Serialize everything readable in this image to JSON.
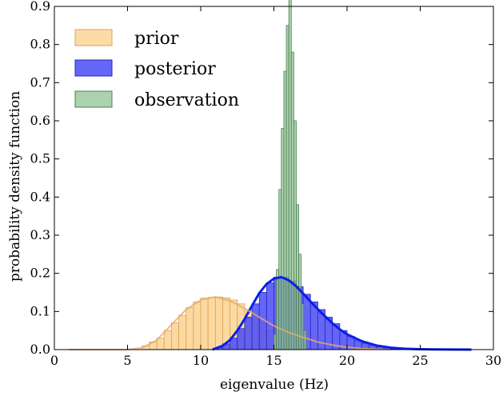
{
  "chart_data": {
    "type": "histogram",
    "xlabel": "eigenvalue (Hz)",
    "ylabel": "probability density function",
    "xlim": [
      0,
      30
    ],
    "ylim": [
      0,
      0.9
    ],
    "xticks": [
      "0",
      "5",
      "10",
      "15",
      "20",
      "25",
      "30"
    ],
    "yticks": [
      "0.0",
      "0.1",
      "0.2",
      "0.3",
      "0.4",
      "0.5",
      "0.6",
      "0.7",
      "0.8",
      "0.9"
    ],
    "legend": {
      "placement": "top-left",
      "entries": [
        "prior",
        "posterior",
        "observation"
      ]
    },
    "colors": {
      "prior_fill": "#fcd596",
      "prior_edge": "#d9a35a",
      "prior_curve": "#e8a96a",
      "posterior_fill": "#4a4af7",
      "posterior_edge": "#2a2ab8",
      "posterior_curve": "#0a20e8",
      "observation_fill": "#8fc493",
      "observation_edge": "#4f7f53"
    },
    "series": [
      {
        "name": "prior",
        "bin_width": 0.5,
        "x": [
          6.0,
          6.5,
          7.0,
          7.5,
          8.0,
          8.5,
          9.0,
          9.5,
          10.0,
          10.5,
          11.0,
          11.5,
          12.0,
          12.5,
          13.0,
          13.5,
          14.0,
          14.5,
          15.0,
          15.5,
          16.0
        ],
        "values": [
          0.01,
          0.02,
          0.03,
          0.05,
          0.07,
          0.09,
          0.11,
          0.125,
          0.135,
          0.137,
          0.138,
          0.136,
          0.13,
          0.12,
          0.105,
          0.09,
          0.07,
          0.05,
          0.035,
          0.02,
          0.01
        ]
      },
      {
        "name": "posterior",
        "bin_width": 0.5,
        "x": [
          11.0,
          11.5,
          12.0,
          12.5,
          13.0,
          13.5,
          14.0,
          14.5,
          15.0,
          15.5,
          16.0,
          16.5,
          17.0,
          17.5,
          18.0,
          18.5,
          19.0,
          19.5,
          20.0,
          20.5,
          21.0,
          21.5,
          22.0,
          22.5,
          23.0,
          23.5
        ],
        "values": [
          0.005,
          0.015,
          0.03,
          0.055,
          0.085,
          0.12,
          0.15,
          0.175,
          0.19,
          0.19,
          0.18,
          0.165,
          0.145,
          0.125,
          0.105,
          0.085,
          0.068,
          0.05,
          0.035,
          0.025,
          0.017,
          0.011,
          0.007,
          0.004,
          0.002,
          0.001
        ]
      },
      {
        "name": "observation",
        "bin_width": 0.17,
        "x": [
          15.0,
          15.17,
          15.34,
          15.51,
          15.68,
          15.85,
          16.02,
          16.19,
          16.36,
          16.53,
          16.7,
          16.87,
          17.04
        ],
        "values": [
          0.04,
          0.21,
          0.42,
          0.58,
          0.73,
          0.85,
          0.93,
          0.78,
          0.6,
          0.38,
          0.25,
          0.12,
          0.05
        ]
      }
    ],
    "curves": [
      {
        "name": "posterior-density",
        "x": [
          10.8,
          11.5,
          12.0,
          12.5,
          13.0,
          13.5,
          14.0,
          14.5,
          15.0,
          15.5,
          16.0,
          16.5,
          17.0,
          17.5,
          18.0,
          18.5,
          19.0,
          19.5,
          20.0,
          21.0,
          22.0,
          23.0,
          24.0,
          25.0,
          26.0,
          27.0,
          28.5
        ],
        "y": [
          0.0,
          0.01,
          0.025,
          0.05,
          0.08,
          0.115,
          0.148,
          0.172,
          0.186,
          0.19,
          0.182,
          0.167,
          0.147,
          0.126,
          0.106,
          0.087,
          0.069,
          0.053,
          0.04,
          0.022,
          0.011,
          0.005,
          0.002,
          0.001,
          0.0005,
          0.0002,
          0.0
        ]
      },
      {
        "name": "prior-density",
        "x": [
          1.0,
          5.0,
          6.0,
          7.0,
          8.0,
          9.0,
          10.0,
          11.0,
          12.0,
          13.0,
          14.0,
          15.0,
          16.0,
          17.0,
          18.0,
          19.0,
          20.0,
          21.0,
          22.0,
          23.0
        ],
        "y": [
          0.0,
          0.0,
          0.005,
          0.025,
          0.065,
          0.105,
          0.13,
          0.138,
          0.128,
          0.108,
          0.085,
          0.062,
          0.045,
          0.032,
          0.02,
          0.012,
          0.006,
          0.003,
          0.001,
          0.0
        ]
      }
    ]
  }
}
